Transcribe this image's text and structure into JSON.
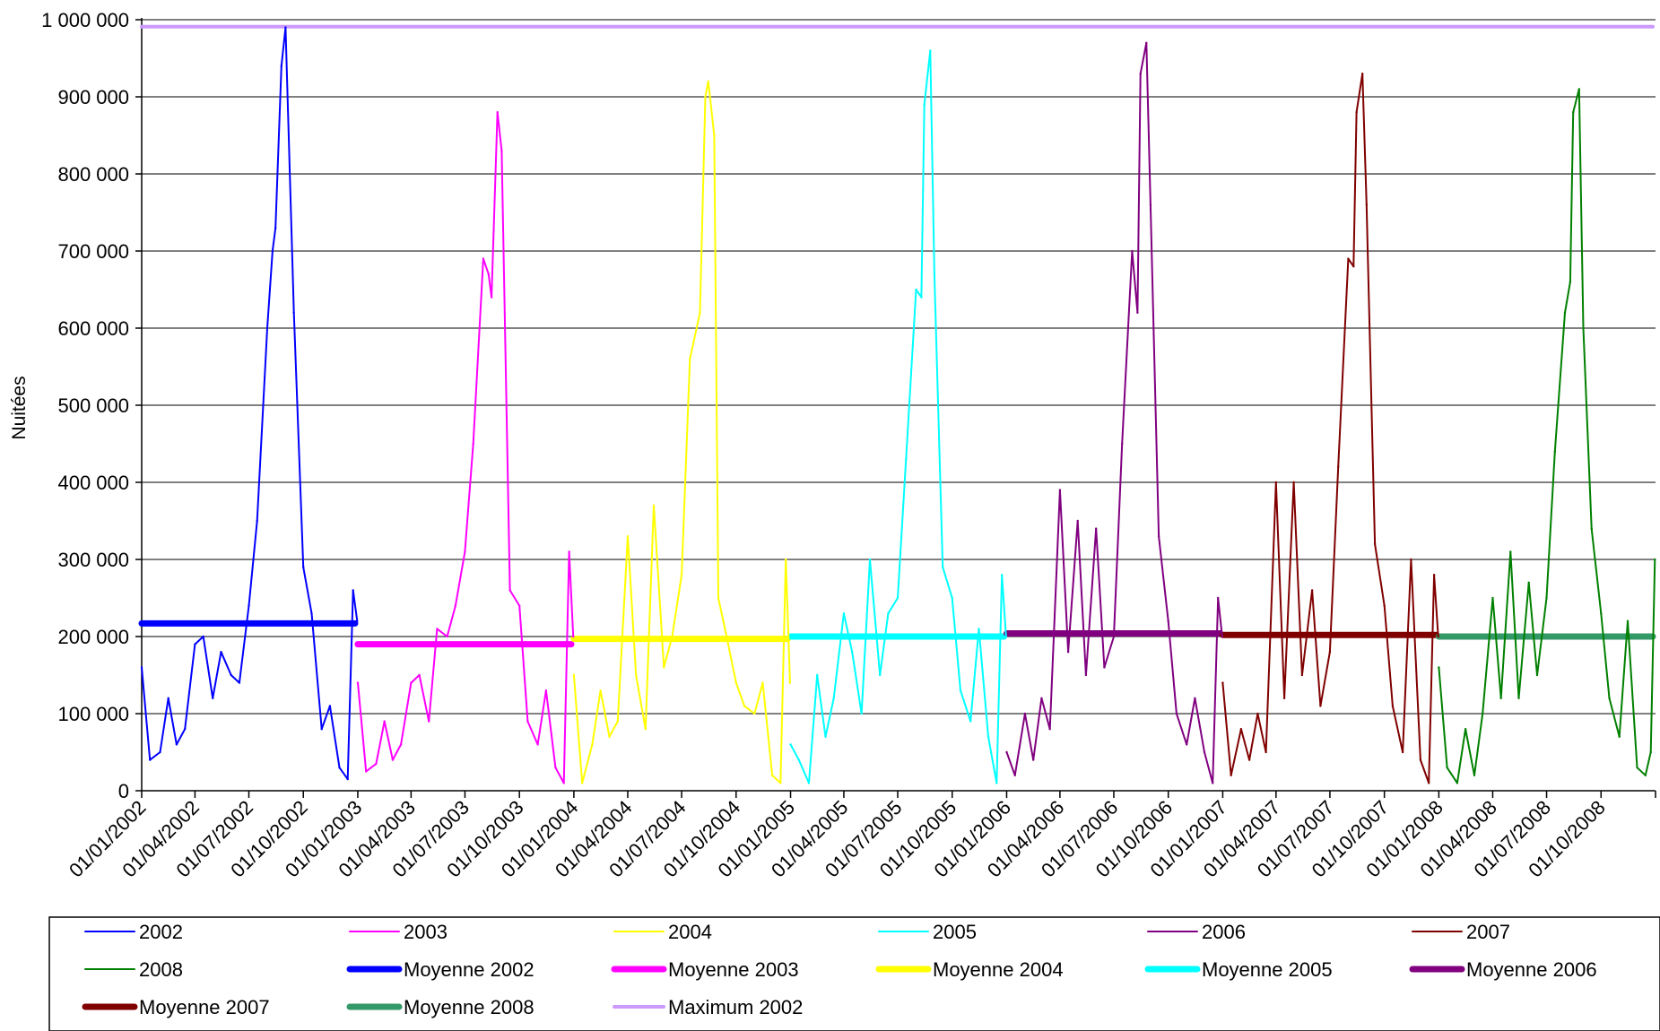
{
  "chart_data": {
    "type": "line",
    "title": "",
    "ylabel": "Nuitées",
    "ylim": [
      0,
      1000000
    ],
    "y_ticks": [
      0,
      100000,
      200000,
      300000,
      400000,
      500000,
      600000,
      700000,
      800000,
      900000,
      1000000
    ],
    "y_tick_labels": [
      "0",
      "100 000",
      "200 000",
      "300 000",
      "400 000",
      "500 000",
      "600 000",
      "700 000",
      "800 000",
      "900 000",
      "1 000 000"
    ],
    "x_range": [
      "2002-01-01",
      "2009-01-01"
    ],
    "x_ticks": [
      "2002-01-01",
      "2002-04-01",
      "2002-07-01",
      "2002-10-01",
      "2003-01-01",
      "2003-04-01",
      "2003-07-01",
      "2003-10-01",
      "2004-01-01",
      "2004-04-01",
      "2004-07-01",
      "2004-10-01",
      "2005-01-01",
      "2005-04-01",
      "2005-07-01",
      "2005-10-01",
      "2006-01-01",
      "2006-04-01",
      "2006-07-01",
      "2006-10-01",
      "2007-01-01",
      "2007-04-01",
      "2007-07-01",
      "2007-10-01",
      "2008-01-01",
      "2008-04-01",
      "2008-07-01",
      "2008-10-01"
    ],
    "x_tick_labels": [
      "01/01/2002",
      "01/04/2002",
      "01/07/2002",
      "01/10/2002",
      "01/01/2003",
      "01/04/2003",
      "01/07/2003",
      "01/10/2003",
      "01/01/2004",
      "01/04/2004",
      "01/07/2004",
      "01/10/2004",
      "01/01/2005",
      "01/04/2005",
      "01/07/2005",
      "01/10/2005",
      "01/01/2006",
      "01/04/2006",
      "01/07/2006",
      "01/10/2006",
      "01/01/2007",
      "01/04/2007",
      "01/07/2007",
      "01/10/2007",
      "01/01/2008",
      "01/04/2008",
      "01/07/2008",
      "01/10/2008"
    ],
    "grid": "horizontal",
    "legend_position": "bottom",
    "series": [
      {
        "name": "2002",
        "color": "#0000ff",
        "x": [
          "2002-01-01",
          "2002-01-15",
          "2002-02-01",
          "2002-02-15",
          "2002-03-01",
          "2002-03-15",
          "2002-04-01",
          "2002-04-15",
          "2002-05-01",
          "2002-05-15",
          "2002-06-01",
          "2002-06-15",
          "2002-07-01",
          "2002-07-15",
          "2002-08-01",
          "2002-08-10",
          "2002-08-15",
          "2002-08-25",
          "2002-09-01",
          "2002-09-15",
          "2002-10-01",
          "2002-10-15",
          "2002-11-01",
          "2002-11-15",
          "2002-12-01",
          "2002-12-15",
          "2002-12-24",
          "2002-12-31"
        ],
        "values": [
          160000,
          40000,
          50000,
          120000,
          60000,
          80000,
          190000,
          200000,
          120000,
          180000,
          150000,
          140000,
          240000,
          350000,
          600000,
          700000,
          730000,
          940000,
          990000,
          620000,
          290000,
          230000,
          80000,
          110000,
          30000,
          15000,
          260000,
          220000
        ]
      },
      {
        "name": "2003",
        "color": "#ff00ff",
        "x": [
          "2003-01-01",
          "2003-01-15",
          "2003-02-01",
          "2003-02-15",
          "2003-03-01",
          "2003-03-15",
          "2003-04-01",
          "2003-04-15",
          "2003-05-01",
          "2003-05-15",
          "2003-06-01",
          "2003-06-15",
          "2003-07-01",
          "2003-07-15",
          "2003-08-01",
          "2003-08-10",
          "2003-08-15",
          "2003-08-25",
          "2003-09-01",
          "2003-09-15",
          "2003-10-01",
          "2003-10-15",
          "2003-11-01",
          "2003-11-15",
          "2003-12-01",
          "2003-12-15",
          "2003-12-24",
          "2003-12-31"
        ],
        "values": [
          140000,
          25000,
          35000,
          90000,
          40000,
          60000,
          140000,
          150000,
          90000,
          210000,
          200000,
          240000,
          310000,
          450000,
          690000,
          670000,
          640000,
          880000,
          830000,
          260000,
          240000,
          90000,
          60000,
          130000,
          30000,
          10000,
          310000,
          200000
        ]
      },
      {
        "name": "2004",
        "color": "#ffff00",
        "x": [
          "2004-01-01",
          "2004-01-15",
          "2004-02-01",
          "2004-02-15",
          "2004-03-01",
          "2004-03-15",
          "2004-04-01",
          "2004-04-15",
          "2004-05-01",
          "2004-05-15",
          "2004-06-01",
          "2004-06-15",
          "2004-07-01",
          "2004-07-15",
          "2004-08-01",
          "2004-08-10",
          "2004-08-15",
          "2004-08-25",
          "2004-09-01",
          "2004-09-15",
          "2004-10-01",
          "2004-10-15",
          "2004-11-01",
          "2004-11-15",
          "2004-12-01",
          "2004-12-15",
          "2004-12-24",
          "2004-12-31"
        ],
        "values": [
          150000,
          10000,
          60000,
          130000,
          70000,
          90000,
          330000,
          150000,
          80000,
          370000,
          160000,
          200000,
          280000,
          560000,
          620000,
          900000,
          920000,
          850000,
          250000,
          200000,
          140000,
          110000,
          100000,
          140000,
          20000,
          10000,
          300000,
          140000
        ]
      },
      {
        "name": "2005",
        "color": "#00ffff",
        "x": [
          "2005-01-01",
          "2005-01-15",
          "2005-02-01",
          "2005-02-15",
          "2005-03-01",
          "2005-03-15",
          "2005-04-01",
          "2005-04-15",
          "2005-05-01",
          "2005-05-15",
          "2005-06-01",
          "2005-06-15",
          "2005-07-01",
          "2005-07-15",
          "2005-08-01",
          "2005-08-10",
          "2005-08-15",
          "2005-08-25",
          "2005-09-01",
          "2005-09-15",
          "2005-10-01",
          "2005-10-15",
          "2005-11-01",
          "2005-11-15",
          "2005-12-01",
          "2005-12-15",
          "2005-12-24",
          "2005-12-31"
        ],
        "values": [
          60000,
          40000,
          10000,
          150000,
          70000,
          120000,
          230000,
          180000,
          100000,
          300000,
          150000,
          230000,
          250000,
          430000,
          650000,
          640000,
          890000,
          960000,
          670000,
          290000,
          250000,
          130000,
          90000,
          210000,
          70000,
          10000,
          280000,
          200000
        ]
      },
      {
        "name": "2006",
        "color": "#800080",
        "x": [
          "2006-01-01",
          "2006-01-15",
          "2006-02-01",
          "2006-02-15",
          "2006-03-01",
          "2006-03-15",
          "2006-04-01",
          "2006-04-15",
          "2006-05-01",
          "2006-05-15",
          "2006-06-01",
          "2006-06-15",
          "2006-07-01",
          "2006-07-15",
          "2006-08-01",
          "2006-08-10",
          "2006-08-15",
          "2006-08-25",
          "2006-09-01",
          "2006-09-15",
          "2006-10-01",
          "2006-10-15",
          "2006-11-01",
          "2006-11-15",
          "2006-12-01",
          "2006-12-15",
          "2006-12-24",
          "2006-12-31"
        ],
        "values": [
          50000,
          20000,
          100000,
          40000,
          120000,
          80000,
          390000,
          180000,
          350000,
          150000,
          340000,
          160000,
          200000,
          450000,
          700000,
          620000,
          930000,
          970000,
          760000,
          330000,
          220000,
          100000,
          60000,
          120000,
          50000,
          10000,
          250000,
          200000
        ]
      },
      {
        "name": "2007",
        "color": "#800000",
        "x": [
          "2007-01-01",
          "2007-01-15",
          "2007-02-01",
          "2007-02-15",
          "2007-03-01",
          "2007-03-15",
          "2007-04-01",
          "2007-04-15",
          "2007-05-01",
          "2007-05-15",
          "2007-06-01",
          "2007-06-15",
          "2007-07-01",
          "2007-07-15",
          "2007-08-01",
          "2007-08-10",
          "2007-08-15",
          "2007-08-25",
          "2007-09-01",
          "2007-09-15",
          "2007-10-01",
          "2007-10-15",
          "2007-11-01",
          "2007-11-15",
          "2007-12-01",
          "2007-12-15",
          "2007-12-24",
          "2007-12-31"
        ],
        "values": [
          140000,
          20000,
          80000,
          40000,
          100000,
          50000,
          400000,
          120000,
          400000,
          150000,
          260000,
          110000,
          180000,
          420000,
          690000,
          680000,
          880000,
          930000,
          760000,
          320000,
          240000,
          110000,
          50000,
          300000,
          40000,
          10000,
          280000,
          200000
        ]
      },
      {
        "name": "2008",
        "color": "#008000",
        "x": [
          "2008-01-01",
          "2008-01-15",
          "2008-02-01",
          "2008-02-15",
          "2008-03-01",
          "2008-03-15",
          "2008-04-01",
          "2008-04-15",
          "2008-05-01",
          "2008-05-15",
          "2008-06-01",
          "2008-06-15",
          "2008-07-01",
          "2008-07-15",
          "2008-08-01",
          "2008-08-10",
          "2008-08-15",
          "2008-08-25",
          "2008-09-01",
          "2008-09-15",
          "2008-10-01",
          "2008-10-15",
          "2008-11-01",
          "2008-11-15",
          "2008-12-01",
          "2008-12-15",
          "2008-12-24",
          "2008-12-31"
        ],
        "values": [
          160000,
          30000,
          10000,
          80000,
          20000,
          100000,
          250000,
          120000,
          310000,
          120000,
          270000,
          150000,
          250000,
          440000,
          620000,
          660000,
          880000,
          910000,
          600000,
          340000,
          230000,
          120000,
          70000,
          220000,
          30000,
          20000,
          50000,
          300000
        ]
      }
    ],
    "reference_lines": [
      {
        "name": "Moyenne 2002",
        "color": "#0000ff",
        "value": 217000,
        "x": [
          "2002-01-01",
          "2003-01-01"
        ]
      },
      {
        "name": "Moyenne 2003",
        "color": "#ff00ff",
        "value": 190000,
        "x": [
          "2003-01-01",
          "2004-01-01"
        ]
      },
      {
        "name": "Moyenne 2004",
        "color": "#ffff00",
        "value": 197000,
        "x": [
          "2004-01-01",
          "2005-01-01"
        ]
      },
      {
        "name": "Moyenne 2005",
        "color": "#00ffff",
        "value": 200000,
        "x": [
          "2005-01-01",
          "2006-01-01"
        ]
      },
      {
        "name": "Moyenne 2006",
        "color": "#800080",
        "value": 204000,
        "x": [
          "2006-01-01",
          "2007-01-01"
        ]
      },
      {
        "name": "Moyenne 2007",
        "color": "#800000",
        "value": 202000,
        "x": [
          "2007-01-01",
          "2008-01-01"
        ]
      },
      {
        "name": "Moyenne 2008",
        "color": "#339966",
        "value": 200000,
        "x": [
          "2008-01-01",
          "2009-01-01"
        ]
      },
      {
        "name": "Maximum 2002",
        "color": "#cc99ff",
        "value": 991000,
        "x": [
          "2002-01-01",
          "2009-01-01"
        ]
      }
    ],
    "legend": [
      {
        "name": "2002",
        "color": "#0000ff",
        "style": "thin"
      },
      {
        "name": "2003",
        "color": "#ff00ff",
        "style": "thin"
      },
      {
        "name": "2004",
        "color": "#ffff00",
        "style": "thin"
      },
      {
        "name": "2005",
        "color": "#00ffff",
        "style": "thin"
      },
      {
        "name": "2006",
        "color": "#800080",
        "style": "thin"
      },
      {
        "name": "2007",
        "color": "#800000",
        "style": "thin"
      },
      {
        "name": "2008",
        "color": "#008000",
        "style": "thin"
      },
      {
        "name": "Moyenne 2002",
        "color": "#0000ff",
        "style": "thick"
      },
      {
        "name": "Moyenne 2003",
        "color": "#ff00ff",
        "style": "thick"
      },
      {
        "name": "Moyenne 2004",
        "color": "#ffff00",
        "style": "thick"
      },
      {
        "name": "Moyenne 2005",
        "color": "#00ffff",
        "style": "thick"
      },
      {
        "name": "Moyenne 2006",
        "color": "#800080",
        "style": "thick"
      },
      {
        "name": "Moyenne 2007",
        "color": "#800000",
        "style": "thick"
      },
      {
        "name": "Moyenne 2008",
        "color": "#339966",
        "style": "thick"
      },
      {
        "name": "Maximum 2002",
        "color": "#cc99ff",
        "style": "medium"
      }
    ]
  }
}
